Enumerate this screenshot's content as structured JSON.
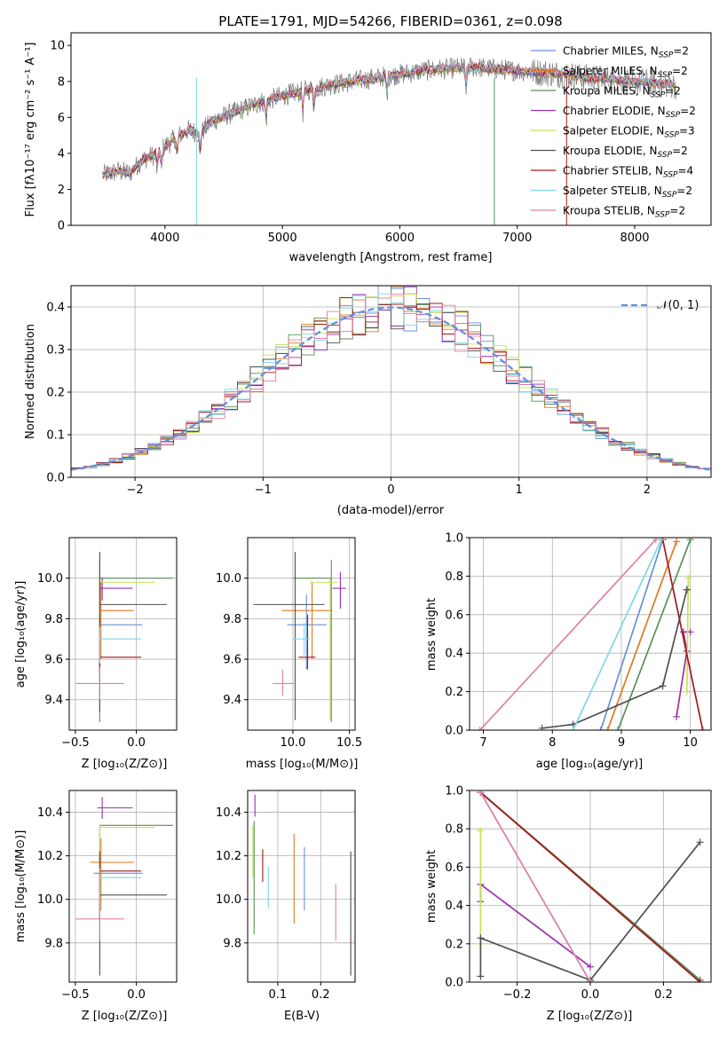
{
  "palette": [
    "#6a8fd8",
    "#e07a1f",
    "#5a8f5a",
    "#9b2fb0",
    "#c8e050",
    "#505050",
    "#a01a1a",
    "#80d8e0",
    "#e080a8"
  ],
  "chart_data": [
    {
      "id": "spectrum",
      "type": "line",
      "title": "PLATE=1791, MJD=54266, FIBERID=0361, z=0.098",
      "xlabel": "wavelength [Angstrom, rest frame]",
      "ylabel": "Flux [fλ10⁻¹⁷ erg cm⁻² s⁻¹ A⁻¹]",
      "xlim": [
        3200,
        8650
      ],
      "ylim": [
        0,
        10.7
      ],
      "xticks": [
        "4000",
        "5000",
        "6000",
        "7000",
        "8000"
      ],
      "yticks": [
        "0",
        "2",
        "4",
        "6",
        "8",
        "10"
      ],
      "legend_position": "right",
      "observed_color": "#777777",
      "continuum": {
        "x": [
          3470,
          3600,
          3700,
          3800,
          3900,
          4000,
          4100,
          4200,
          4300,
          4400,
          4600,
          4800,
          5000,
          5200,
          5400,
          5600,
          5800,
          6000,
          6200,
          6400,
          6600,
          6800,
          7000,
          7200,
          7400,
          7600,
          7800,
          8000,
          8200,
          8350
        ],
        "y": [
          2.8,
          3.0,
          2.9,
          3.6,
          3.9,
          4.4,
          4.9,
          5.3,
          5.1,
          5.8,
          6.3,
          6.8,
          7.2,
          7.5,
          7.8,
          8.0,
          8.2,
          8.4,
          8.6,
          8.7,
          8.8,
          8.7,
          8.6,
          8.5,
          8.4,
          8.2,
          8.1,
          8.0,
          7.9,
          7.8
        ]
      },
      "legend": [
        {
          "label": "Chabrier MILES, N",
          "sub": "SSP",
          "eq": "=2"
        },
        {
          "label": "Salpeter MILES, N",
          "sub": "SSP",
          "eq": "=2"
        },
        {
          "label": "Kroupa MILES, N",
          "sub": "SSP",
          "eq": "=2"
        },
        {
          "label": "Chabrier ELODIE, N",
          "sub": "SSP",
          "eq": "=2"
        },
        {
          "label": "Salpeter ELODIE, N",
          "sub": "SSP",
          "eq": "=3"
        },
        {
          "label": "Kroupa ELODIE, N",
          "sub": "SSP",
          "eq": "=2"
        },
        {
          "label": "Chabrier STELIB, N",
          "sub": "SSP",
          "eq": "=4"
        },
        {
          "label": "Salpeter STELIB, N",
          "sub": "SSP",
          "eq": "=2"
        },
        {
          "label": "Kroupa STELIB, N",
          "sub": "SSP",
          "eq": "=2"
        }
      ]
    },
    {
      "id": "residuals",
      "type": "bar",
      "xlabel": "(data-model)/error",
      "ylabel": "Normed distribution",
      "xlim": [
        -2.5,
        2.5
      ],
      "ylim": [
        0,
        0.45
      ],
      "xticks": [
        "−2",
        "−1",
        "0",
        "1",
        "2"
      ],
      "yticks": [
        "0.0",
        "0.1",
        "0.2",
        "0.3",
        "0.4"
      ],
      "legend": "𝒩(0, 1)",
      "gaussian_color": "#5f8fd8",
      "bin_width": 0.1
    },
    {
      "id": "age_vs_Z",
      "type": "scatter",
      "xlabel": "Z [log₁₀(Z/Z⊙)]",
      "ylabel": "age  [log₁₀(age/yr)]",
      "xlim": [
        -0.55,
        0.33
      ],
      "ylim": [
        9.25,
        10.2
      ],
      "xticks": [
        "−0.5",
        "0.0"
      ],
      "yticks": [
        "9.4",
        "9.6",
        "9.8",
        "10.0"
      ],
      "points": [
        {
          "x": -0.3,
          "xlo": -0.3,
          "xhi": 0.05,
          "y": 9.77,
          "ylo": 9.55,
          "yhi": 9.98
        },
        {
          "x": -0.29,
          "xlo": -0.3,
          "xhi": -0.02,
          "y": 9.84,
          "ylo": 9.6,
          "yhi": 9.98
        },
        {
          "x": -0.3,
          "xlo": -0.3,
          "xhi": 0.3,
          "y": 10.0,
          "ylo": 9.29,
          "yhi": 10.09
        },
        {
          "x": -0.28,
          "xlo": -0.3,
          "xhi": -0.03,
          "y": 9.95,
          "ylo": 9.89,
          "yhi": 10.0
        },
        {
          "x": -0.3,
          "xlo": -0.3,
          "xhi": 0.15,
          "y": 9.98,
          "ylo": 9.81,
          "yhi": 10.0
        },
        {
          "x": -0.3,
          "xlo": -0.3,
          "xhi": 0.25,
          "y": 9.87,
          "ylo": 9.34,
          "yhi": 10.13
        },
        {
          "x": -0.3,
          "xlo": -0.3,
          "xhi": 0.04,
          "y": 9.61,
          "ylo": 9.53,
          "yhi": 9.69
        },
        {
          "x": -0.3,
          "xlo": -0.3,
          "xhi": 0.04,
          "y": 9.7,
          "ylo": 9.58,
          "yhi": 9.76
        },
        {
          "x": -0.3,
          "xlo": -0.5,
          "xhi": -0.1,
          "y": 9.48,
          "ylo": 9.4,
          "yhi": 9.56
        }
      ]
    },
    {
      "id": "age_vs_mass",
      "type": "scatter",
      "xlabel": "mass [log₁₀(M/M⊙)]",
      "xlim": [
        9.6,
        10.55
      ],
      "ylim": [
        9.25,
        10.2
      ],
      "xticks": [
        "10.0",
        "10.5"
      ],
      "yticks": [
        "9.4",
        "9.6",
        "9.8",
        "10.0"
      ],
      "points": [
        {
          "x": 10.12,
          "xlo": 9.95,
          "xhi": 10.3,
          "y": 9.77,
          "ylo": 9.55,
          "yhi": 9.92
        },
        {
          "x": 10.17,
          "xlo": 9.9,
          "xhi": 10.35,
          "y": 9.84,
          "ylo": 9.6,
          "yhi": 9.98
        },
        {
          "x": 10.34,
          "xlo": 10.0,
          "xhi": 10.34,
          "y": 10.0,
          "ylo": 9.29,
          "yhi": 10.09
        },
        {
          "x": 10.42,
          "xlo": 10.35,
          "xhi": 10.47,
          "y": 9.95,
          "ylo": 9.85,
          "yhi": 10.03
        },
        {
          "x": 10.33,
          "xlo": 10.15,
          "xhi": 10.4,
          "y": 9.98,
          "ylo": 9.3,
          "yhi": 10.0
        },
        {
          "x": 10.02,
          "xlo": 9.65,
          "xhi": 10.28,
          "y": 9.87,
          "ylo": 9.3,
          "yhi": 10.13
        },
        {
          "x": 10.13,
          "xlo": 10.05,
          "xhi": 10.2,
          "y": 9.61,
          "ylo": 9.55,
          "yhi": 9.82
        },
        {
          "x": 10.1,
          "xlo": 10.0,
          "xhi": 10.15,
          "y": 9.7,
          "ylo": 9.62,
          "yhi": 9.78
        },
        {
          "x": 9.91,
          "xlo": 9.82,
          "xhi": 10.02,
          "y": 9.48,
          "ylo": 9.42,
          "yhi": 9.55
        }
      ]
    },
    {
      "id": "weight_vs_age",
      "type": "line",
      "xlabel": "age  [log₁₀(age/yr)]",
      "ylabel": "mass weight",
      "xlim": [
        6.8,
        10.3
      ],
      "ylim": [
        0,
        1
      ],
      "xticks": [
        "7",
        "8",
        "9",
        "10"
      ],
      "yticks": [
        "0.0",
        "0.2",
        "0.4",
        "0.6",
        "0.8",
        "1.0"
      ],
      "series": [
        {
          "x": [
            8.7,
            9.6
          ],
          "y": [
            0.0,
            0.99
          ]
        },
        {
          "x": [
            8.8,
            9.8
          ],
          "y": [
            0.0,
            0.98
          ]
        },
        {
          "x": [
            8.95,
            10.0
          ],
          "y": [
            0.0,
            0.99
          ]
        },
        {
          "x": [
            9.8,
            9.95,
            9.9,
            10.0
          ],
          "y": [
            0.07,
            0.41,
            0.51,
            0.51
          ]
        },
        {
          "x": [
            9.95,
            9.97
          ],
          "y": [
            0.2,
            0.79
          ]
        },
        {
          "x": [
            7.85,
            8.3,
            9.6,
            9.95,
            9.95
          ],
          "y": [
            0.01,
            0.03,
            0.23,
            0.73,
            0.73
          ]
        },
        {
          "x": [
            9.6,
            10.18
          ],
          "y": [
            0.99,
            0.0
          ]
        },
        {
          "x": [
            8.3,
            9.58
          ],
          "y": [
            0.0,
            0.99
          ]
        },
        {
          "x": [
            6.95,
            9.5
          ],
          "y": [
            0.0,
            0.99
          ]
        }
      ]
    },
    {
      "id": "mass_vs_Z",
      "type": "scatter",
      "xlabel": "Z [log₁₀(Z/Z⊙)]",
      "ylabel": "mass [log₁₀(M/M⊙)]",
      "xlim": [
        -0.55,
        0.33
      ],
      "ylim": [
        9.62,
        10.5
      ],
      "xticks": [
        "−0.5",
        "0.0"
      ],
      "yticks": [
        "9.8",
        "10.0",
        "10.2",
        "10.4"
      ],
      "points": [
        {
          "x": -0.3,
          "xlo": -0.35,
          "xhi": 0.05,
          "y": 10.12,
          "ylo": 9.9,
          "yhi": 10.2
        },
        {
          "x": -0.29,
          "xlo": -0.38,
          "xhi": -0.02,
          "y": 10.17,
          "ylo": 9.95,
          "yhi": 10.28
        },
        {
          "x": -0.3,
          "xlo": -0.3,
          "xhi": 0.3,
          "y": 10.34,
          "ylo": 9.9,
          "yhi": 10.34
        },
        {
          "x": -0.28,
          "xlo": -0.32,
          "xhi": -0.03,
          "y": 10.42,
          "ylo": 10.37,
          "yhi": 10.47
        },
        {
          "x": -0.3,
          "xlo": -0.3,
          "xhi": 0.15,
          "y": 10.33,
          "ylo": 10.0,
          "yhi": 10.34
        },
        {
          "x": -0.3,
          "xlo": -0.3,
          "xhi": 0.25,
          "y": 10.02,
          "ylo": 9.65,
          "yhi": 10.22
        },
        {
          "x": -0.3,
          "xlo": -0.3,
          "xhi": 0.04,
          "y": 10.13,
          "ylo": 9.95,
          "yhi": 10.13
        },
        {
          "x": -0.3,
          "xlo": -0.3,
          "xhi": 0.04,
          "y": 10.1,
          "ylo": 9.9,
          "yhi": 10.14
        },
        {
          "x": -0.3,
          "xlo": -0.5,
          "xhi": -0.1,
          "y": 9.91,
          "ylo": 9.81,
          "yhi": 9.96
        }
      ]
    },
    {
      "id": "mass_vs_ebv",
      "type": "scatter",
      "xlabel": "E(B-V)",
      "xlim": [
        0.03,
        0.28
      ],
      "ylim": [
        9.62,
        10.5
      ],
      "xticks": [
        "0.1",
        "0.2"
      ],
      "yticks": [
        "9.8",
        "10.0",
        "10.2",
        "10.4"
      ],
      "points": [
        {
          "x": 0.162,
          "ylo": 9.95,
          "yhi": 10.24
        },
        {
          "x": 0.138,
          "ylo": 9.89,
          "yhi": 10.3
        },
        {
          "x": 0.045,
          "ylo": 9.84,
          "yhi": 10.36
        },
        {
          "x": 0.047,
          "ylo": 10.38,
          "yhi": 10.48
        },
        {
          "x": 0.042,
          "ylo": 10.1,
          "yhi": 10.34
        },
        {
          "x": 0.27,
          "ylo": 9.65,
          "yhi": 10.22
        },
        {
          "x": 0.065,
          "ylo": 10.08,
          "yhi": 10.23
        },
        {
          "x": 0.078,
          "ylo": 9.96,
          "yhi": 10.15
        },
        {
          "x": 0.235,
          "ylo": 9.81,
          "yhi": 10.07
        }
      ]
    },
    {
      "id": "weight_vs_Z",
      "type": "line",
      "xlabel": "Z [log₁₀(Z/Z⊙)]",
      "ylabel": "mass weight",
      "xlim": [
        -0.33,
        0.33
      ],
      "ylim": [
        0,
        1
      ],
      "xticks": [
        "−0.2",
        "0.0",
        "0.2"
      ],
      "yticks": [
        "0.0",
        "0.2",
        "0.4",
        "0.6",
        "0.8",
        "1.0"
      ],
      "series": [
        {
          "x": [
            -0.3,
            0.3
          ],
          "y": [
            0.99,
            0.01
          ]
        },
        {
          "x": [
            -0.3,
            0.3
          ],
          "y": [
            0.99,
            0.01
          ]
        },
        {
          "x": [
            -0.3,
            0.3
          ],
          "y": [
            0.99,
            0.01
          ]
        },
        {
          "x": [
            -0.3,
            -0.3,
            0.0
          ],
          "y": [
            0.42,
            0.51,
            0.08
          ]
        },
        {
          "x": [
            -0.3,
            -0.3
          ],
          "y": [
            0.2,
            0.79
          ]
        },
        {
          "x": [
            -0.3,
            -0.3,
            0.0,
            0.3
          ],
          "y": [
            0.03,
            0.23,
            0.01,
            0.73
          ]
        },
        {
          "x": [
            -0.3,
            0.3
          ],
          "y": [
            0.99,
            0.0
          ]
        },
        {
          "x": [
            -0.3,
            0.0
          ],
          "y": [
            0.99,
            0.0
          ]
        },
        {
          "x": [
            -0.3,
            0.0
          ],
          "y": [
            0.99,
            0.0
          ]
        }
      ]
    }
  ]
}
